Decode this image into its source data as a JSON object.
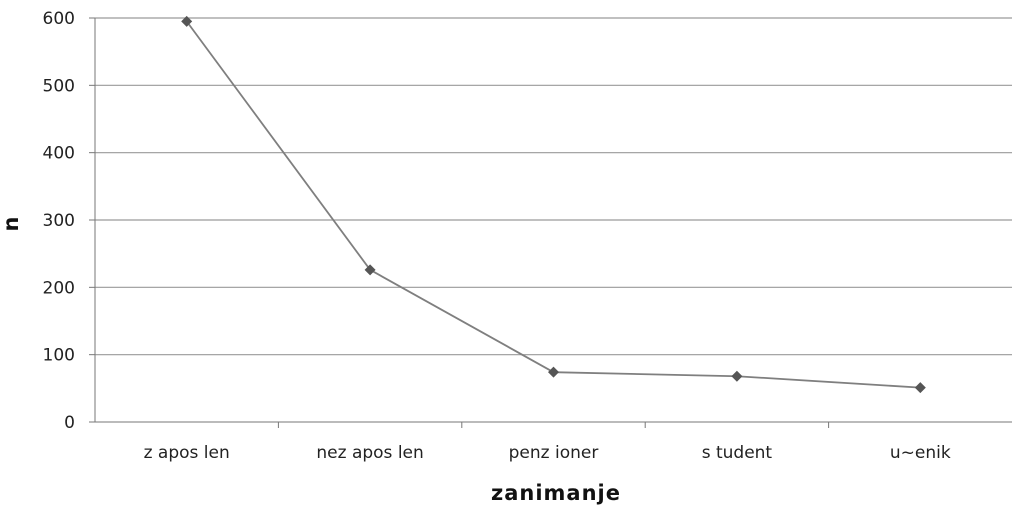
{
  "chart_data": {
    "type": "line",
    "categories": [
      "z apos len",
      "nez apos len",
      "penz ioner",
      "s tudent",
      "u~enik"
    ],
    "values": [
      595,
      226,
      74,
      68,
      51
    ],
    "xlabel": "zanimanje",
    "ylabel": "n",
    "ylim": [
      0,
      600
    ],
    "yticks": [
      0,
      100,
      200,
      300,
      400,
      500,
      600
    ],
    "ytick_labels": [
      "0",
      "100",
      "200",
      "300",
      "400",
      "500",
      "600"
    ],
    "grid": true,
    "legend": "none",
    "colors": {
      "line": "#7f7f7f",
      "marker": "#555555",
      "grid": "#9a9a9a",
      "axis": "#777777"
    }
  }
}
